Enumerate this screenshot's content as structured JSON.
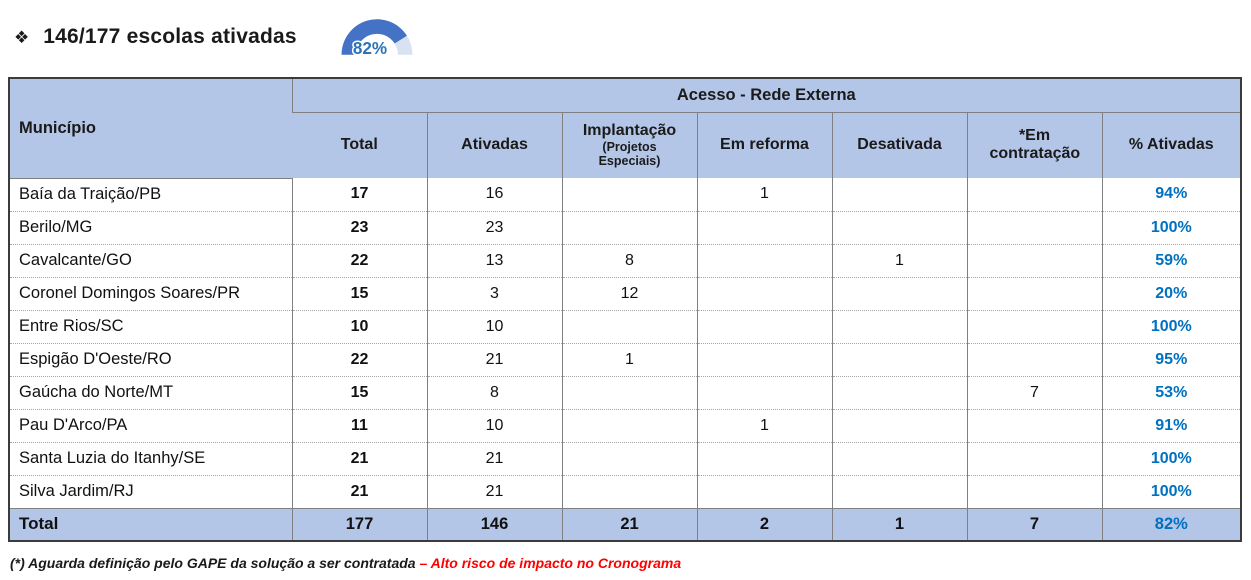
{
  "title": {
    "bullet": "❖",
    "text": "146/177 escolas ativadas"
  },
  "gauge": {
    "percent": 82,
    "label": "82%",
    "fill_color": "#4472C4",
    "track_color": "#D9E2F3",
    "label_color": "#2E74B5"
  },
  "table": {
    "corner_header": "Município",
    "group_header": "Acesso - Rede Externa",
    "sub_headers": [
      "Total",
      "Ativadas",
      "Implantação",
      "Em reforma",
      "Desativada",
      "*Em contratação",
      "% Ativadas"
    ],
    "implantacao_subtitle": "(Projetos Especiais)",
    "rows": [
      [
        "Baía da Traição/PB",
        "17",
        "16",
        "",
        "1",
        "",
        "",
        "94%"
      ],
      [
        "Berilo/MG",
        "23",
        "23",
        "",
        "",
        "",
        "",
        "100%"
      ],
      [
        "Cavalcante/GO",
        "22",
        "13",
        "8",
        "",
        "1",
        "",
        "59%"
      ],
      [
        "Coronel Domingos Soares/PR",
        "15",
        "3",
        "12",
        "",
        "",
        "",
        "20%"
      ],
      [
        "Entre Rios/SC",
        "10",
        "10",
        "",
        "",
        "",
        "",
        "100%"
      ],
      [
        "Espigão D'Oeste/RO",
        "22",
        "21",
        "1",
        "",
        "",
        "",
        "95%"
      ],
      [
        "Gaúcha do Norte/MT",
        "15",
        "8",
        "",
        "",
        "",
        "7",
        "53%"
      ],
      [
        "Pau D'Arco/PA",
        "11",
        "10",
        "",
        "1",
        "",
        "",
        "91%"
      ],
      [
        "Santa Luzia do Itanhy/SE",
        "21",
        "21",
        "",
        "",
        "",
        "",
        "100%"
      ],
      [
        "Silva Jardim/RJ",
        "21",
        "21",
        "",
        "",
        "",
        "",
        "100%"
      ]
    ],
    "total_row": [
      "Total",
      "177",
      "146",
      "21",
      "2",
      "1",
      "7",
      "82%"
    ]
  },
  "footnote": {
    "black_part": "(*) Aguarda definição pelo GAPE da solução a ser contratada",
    "red_part": "– Alto risco de impacto no Cronograma"
  },
  "colors": {
    "header_fill": "#B4C6E7",
    "outer_border": "#3B3B3B",
    "inner_line": "#808080",
    "dotted_line": "#A6A6A6",
    "pct_blue": "#0070C0",
    "footnote_red": "#FF0000"
  }
}
